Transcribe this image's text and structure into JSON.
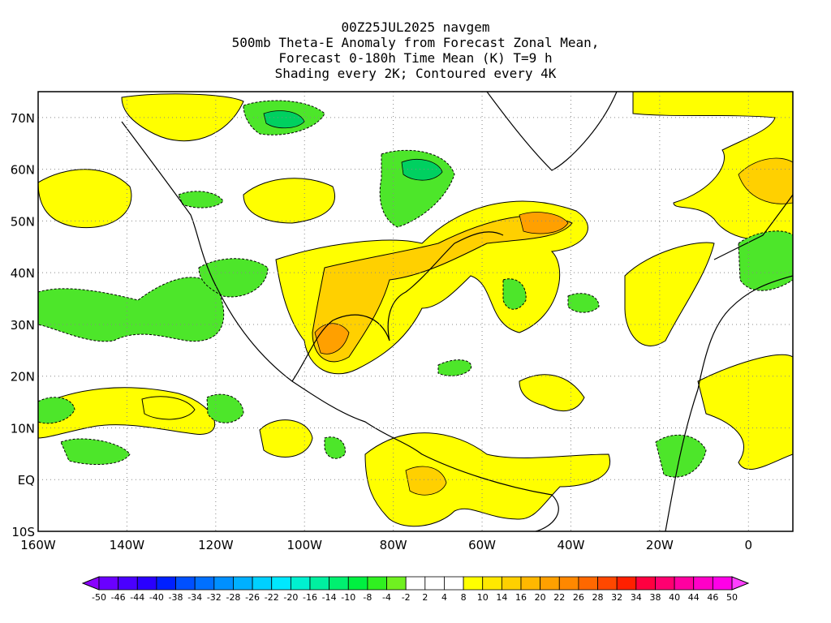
{
  "title": {
    "line1": "00Z25JUL2025 navgem",
    "line2": "500mb Theta-E Anomaly from Forecast Zonal Mean,",
    "line3": "Forecast 0-180h Time Mean (K) T=9 h",
    "line4": "Shading every 2K; Contoured every 4K"
  },
  "map": {
    "lon_range": [
      -160,
      10
    ],
    "lat_range": [
      -10,
      75
    ],
    "lon_ticks": [
      "160W",
      "140W",
      "120W",
      "100W",
      "80W",
      "60W",
      "40W",
      "20W",
      "0"
    ],
    "lat_ticks": [
      "10S",
      "EQ",
      "10N",
      "20N",
      "30N",
      "40N",
      "50N",
      "60N",
      "70N"
    ],
    "grid_style": "dotted"
  },
  "colorbar": {
    "labels": [
      "-50",
      "-46",
      "-44",
      "-40",
      "-38",
      "-34",
      "-32",
      "-28",
      "-26",
      "-22",
      "-20",
      "-16",
      "-14",
      "-10",
      "-8",
      "-4",
      "-2",
      "2",
      "4",
      "8",
      "10",
      "14",
      "16",
      "20",
      "22",
      "26",
      "28",
      "32",
      "34",
      "38",
      "40",
      "44",
      "46",
      "50"
    ],
    "colors": [
      "#8a00ff",
      "#6a00ff",
      "#4a00ff",
      "#2a00ff",
      "#0020ff",
      "#0050ff",
      "#0070ff",
      "#0090ff",
      "#00b0ff",
      "#00d0ff",
      "#00e8ff",
      "#00f0d0",
      "#00f0a0",
      "#00f070",
      "#00f040",
      "#30f020",
      "#70f020",
      "#ffffff",
      "#ffffff",
      "#ffffff",
      "#ffff00",
      "#ffe800",
      "#ffd000",
      "#ffb800",
      "#ffa000",
      "#ff8800",
      "#ff6800",
      "#ff4800",
      "#ff2000",
      "#ff0040",
      "#ff0070",
      "#ff00a0",
      "#ff00c8",
      "#ff00e8",
      "#ff40ff"
    ]
  },
  "colors": {
    "positive_light": "#ffff00",
    "positive_mid": "#ffd000",
    "positive_strong": "#ffa000",
    "negative_light": "#4de62a",
    "negative_mid": "#00d060"
  }
}
